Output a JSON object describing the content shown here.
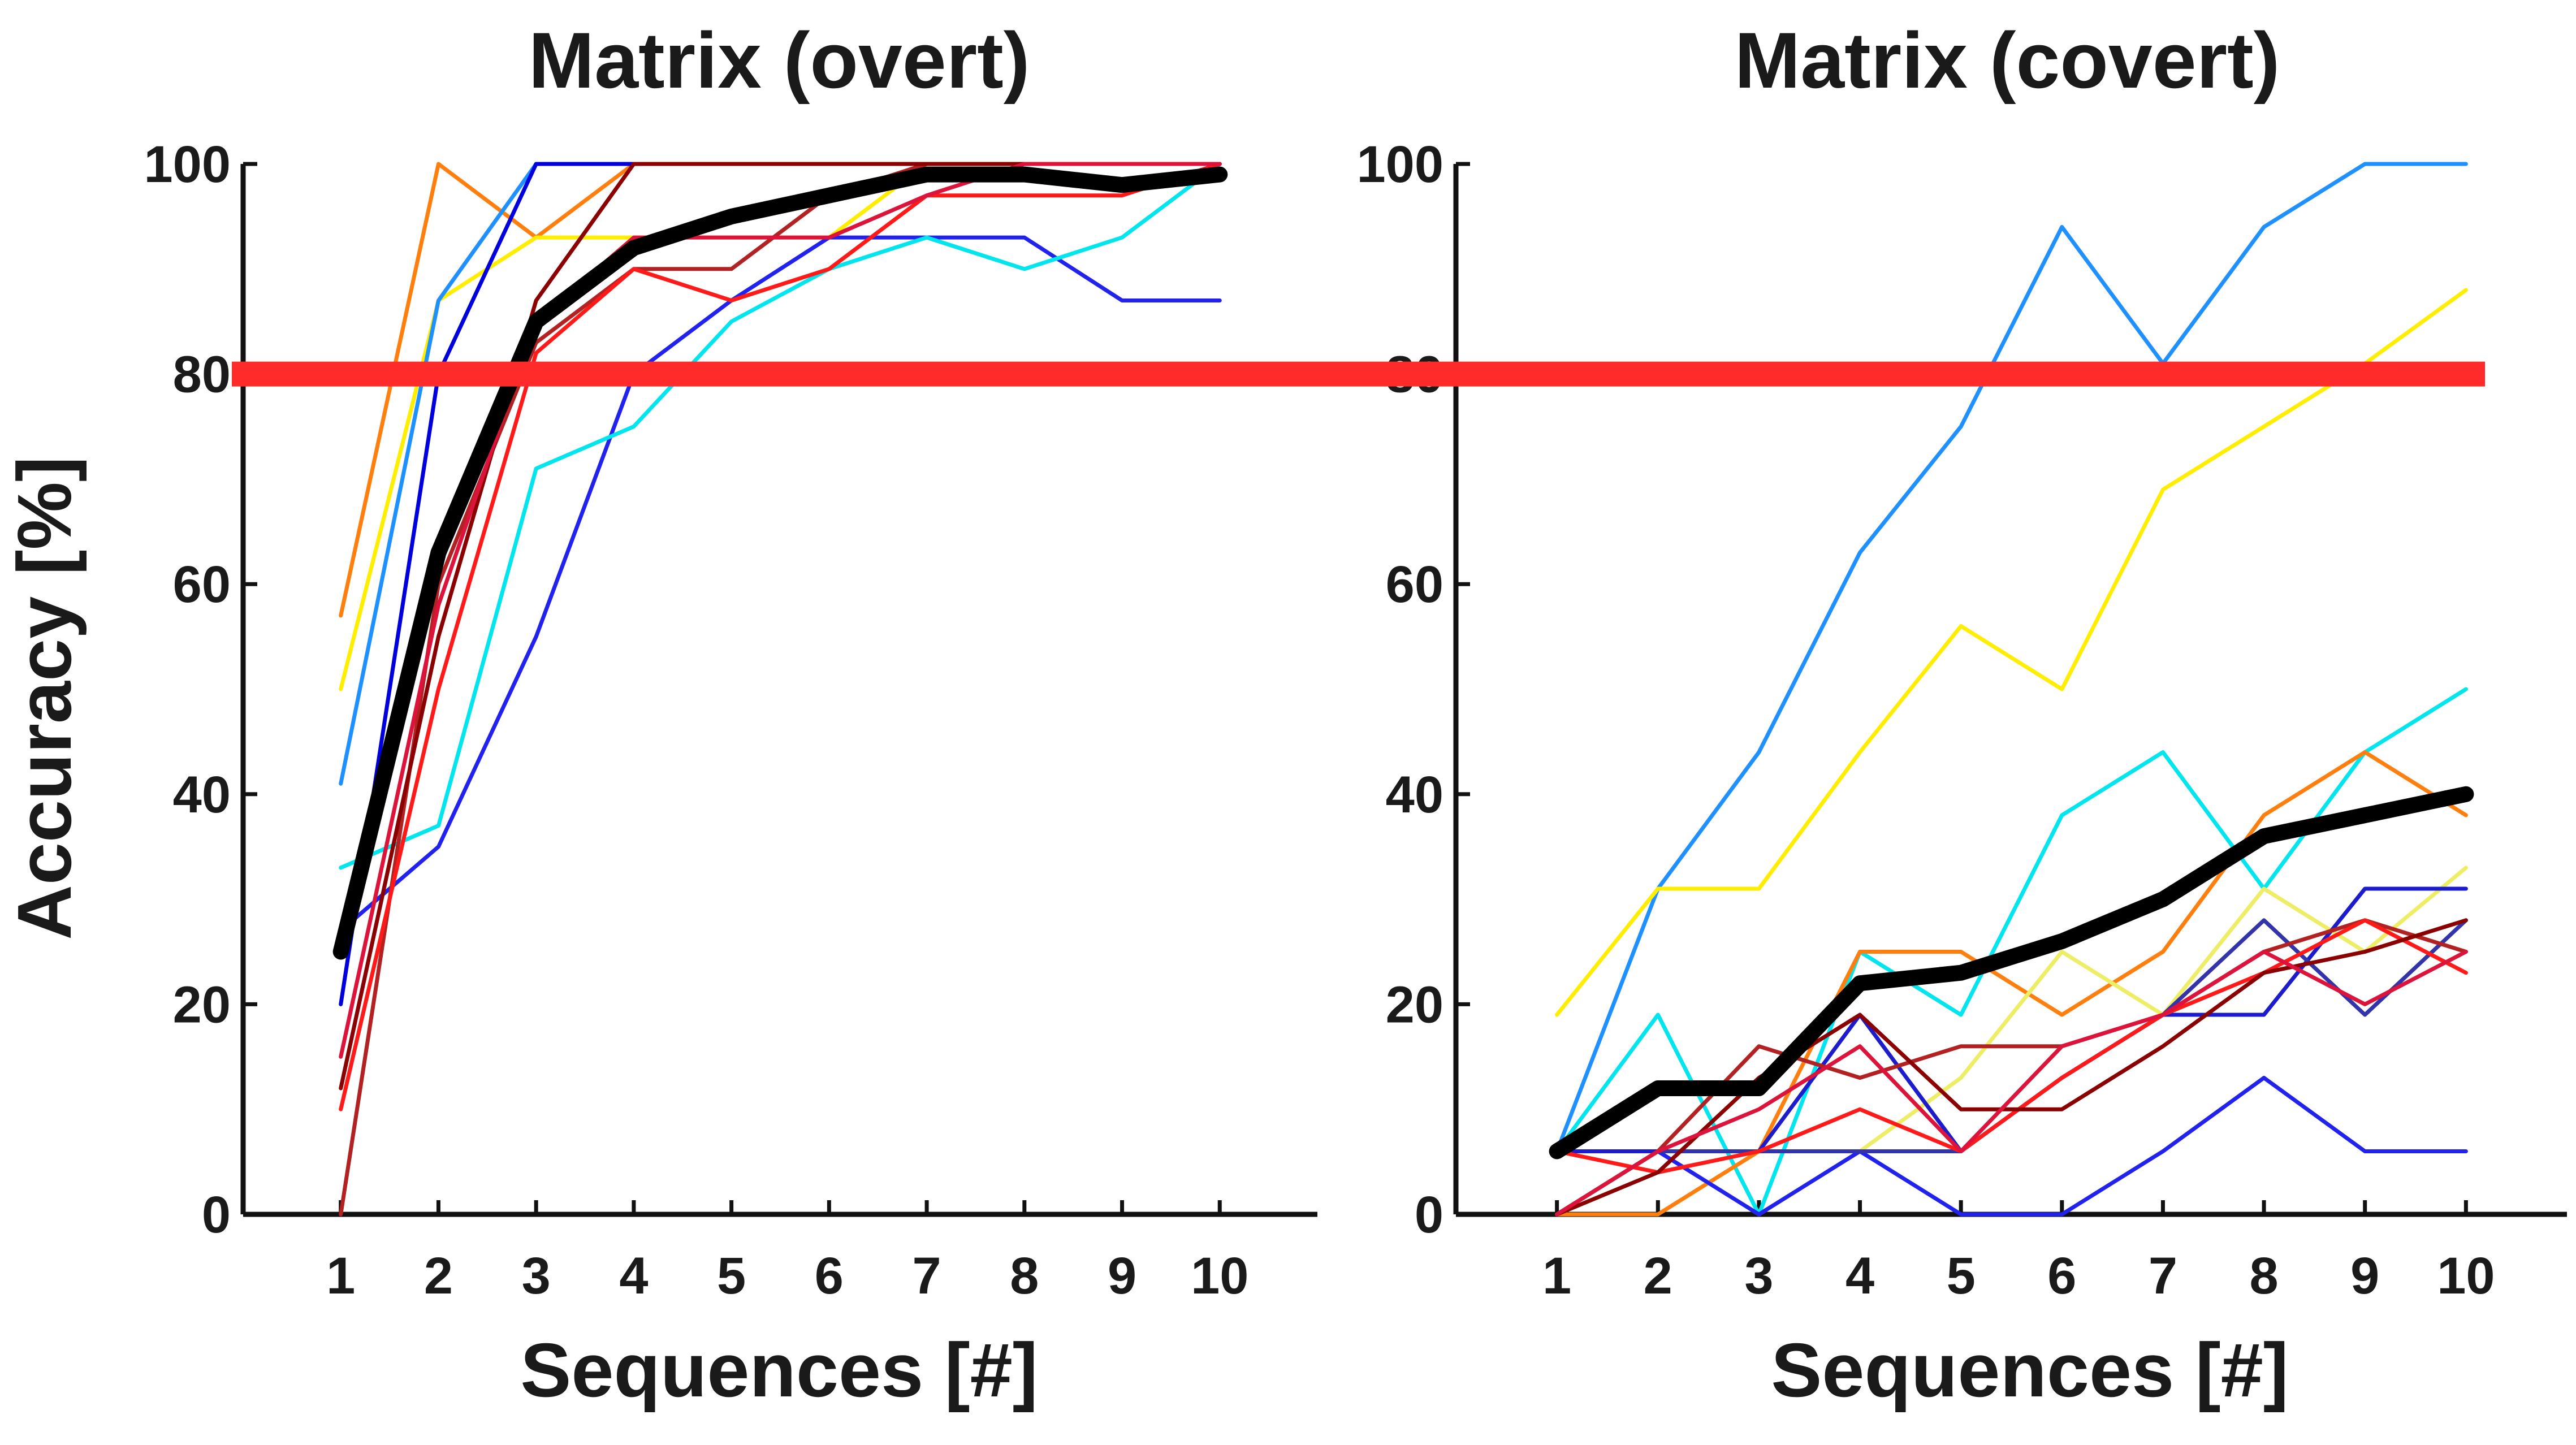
{
  "chart_data": [
    {
      "type": "line",
      "title": "Matrix (overt)",
      "xlabel": "Sequences [#]",
      "ylabel": "Accuracy  [%]",
      "x": [
        1,
        2,
        3,
        4,
        5,
        6,
        7,
        8,
        9,
        10
      ],
      "xlim": [
        0,
        11
      ],
      "ylim": [
        0,
        100
      ],
      "yticks": [
        0,
        20,
        40,
        60,
        80,
        100
      ],
      "grid": false,
      "threshold": {
        "y": 80,
        "color": "#ff2b2b"
      },
      "series": [
        {
          "color": "#ff7f0e",
          "values": [
            57,
            100,
            93,
            100,
            100,
            100,
            100,
            100,
            100,
            100
          ],
          "mean": false
        },
        {
          "color": "#ffee00",
          "values": [
            50,
            87,
            93,
            93,
            93,
            93,
            100,
            100,
            100,
            100
          ],
          "mean": false
        },
        {
          "color": "#1e90ff",
          "values": [
            41,
            87,
            100,
            100,
            100,
            100,
            100,
            100,
            100,
            100
          ],
          "mean": false
        },
        {
          "color": "#0000dd",
          "values": [
            20,
            80,
            100,
            100,
            100,
            100,
            100,
            100,
            100,
            100
          ],
          "mean": false
        },
        {
          "color": "#2222ee",
          "values": [
            27,
            35,
            55,
            80,
            87,
            93,
            93,
            93,
            87,
            87
          ],
          "mean": false
        },
        {
          "color": "#00e5ee",
          "values": [
            33,
            37,
            71,
            75,
            85,
            90,
            93,
            90,
            93,
            100
          ],
          "mean": false
        },
        {
          "color": "#b22222",
          "values": [
            0,
            60,
            83,
            90,
            90,
            97,
            100,
            100,
            100,
            100
          ],
          "mean": false
        },
        {
          "color": "#ff1a1a",
          "values": [
            10,
            50,
            82,
            90,
            87,
            90,
            97,
            97,
            97,
            100
          ],
          "mean": false
        },
        {
          "color": "#8b0000",
          "values": [
            12,
            55,
            87,
            100,
            100,
            100,
            100,
            100,
            100,
            100
          ],
          "mean": false
        },
        {
          "color": "#dc143c",
          "values": [
            15,
            58,
            85,
            93,
            93,
            93,
            97,
            100,
            100,
            100
          ],
          "mean": false
        },
        {
          "color": "#000000",
          "values": [
            25,
            63,
            85,
            92,
            95,
            97,
            99,
            99,
            98,
            99
          ],
          "mean": true
        }
      ]
    },
    {
      "type": "line",
      "title": "Matrix (covert)",
      "xlabel": "Sequences [#]",
      "ylabel": "",
      "x": [
        1,
        2,
        3,
        4,
        5,
        6,
        7,
        8,
        9,
        10
      ],
      "xlim": [
        0,
        11
      ],
      "ylim": [
        0,
        100
      ],
      "yticks": [
        0,
        20,
        40,
        60,
        80,
        100
      ],
      "grid": false,
      "threshold": {
        "y": 80,
        "color": "#ff2b2b"
      },
      "series": [
        {
          "color": "#1e90ff",
          "values": [
            6,
            31,
            44,
            63,
            75,
            94,
            81,
            94,
            100,
            100
          ],
          "mean": false
        },
        {
          "color": "#ffee00",
          "values": [
            19,
            31,
            31,
            44,
            56,
            50,
            69,
            75,
            81,
            88
          ],
          "mean": false
        },
        {
          "color": "#00e5ee",
          "values": [
            6,
            19,
            0,
            25,
            19,
            38,
            44,
            31,
            44,
            50
          ],
          "mean": false
        },
        {
          "color": "#ff7f0e",
          "values": [
            0,
            0,
            6,
            25,
            25,
            19,
            25,
            38,
            44,
            38
          ],
          "mean": false
        },
        {
          "color": "#eeee66",
          "values": [
            0,
            6,
            0,
            6,
            13,
            25,
            19,
            31,
            25,
            33
          ],
          "mean": false
        },
        {
          "color": "#2222ee",
          "values": [
            6,
            6,
            0,
            6,
            0,
            0,
            6,
            13,
            6,
            6
          ],
          "mean": false
        },
        {
          "color": "#1c1ccc",
          "values": [
            6,
            6,
            6,
            19,
            6,
            13,
            19,
            19,
            31,
            31
          ],
          "mean": false
        },
        {
          "color": "#3333aa",
          "values": [
            0,
            6,
            6,
            6,
            6,
            13,
            19,
            28,
            19,
            28
          ],
          "mean": false
        },
        {
          "color": "#b22222",
          "values": [
            0,
            6,
            16,
            13,
            16,
            16,
            19,
            25,
            28,
            25
          ],
          "mean": false
        },
        {
          "color": "#ff1a1a",
          "values": [
            6,
            4,
            6,
            10,
            6,
            13,
            19,
            23,
            28,
            23
          ],
          "mean": false
        },
        {
          "color": "#8b0000",
          "values": [
            0,
            4,
            13,
            19,
            10,
            10,
            16,
            23,
            25,
            28
          ],
          "mean": false
        },
        {
          "color": "#dc143c",
          "values": [
            0,
            6,
            10,
            16,
            6,
            16,
            19,
            25,
            20,
            25
          ],
          "mean": false
        },
        {
          "color": "#000000",
          "values": [
            6,
            12,
            12,
            22,
            23,
            26,
            30,
            36,
            38,
            40
          ],
          "mean": true
        }
      ]
    }
  ]
}
